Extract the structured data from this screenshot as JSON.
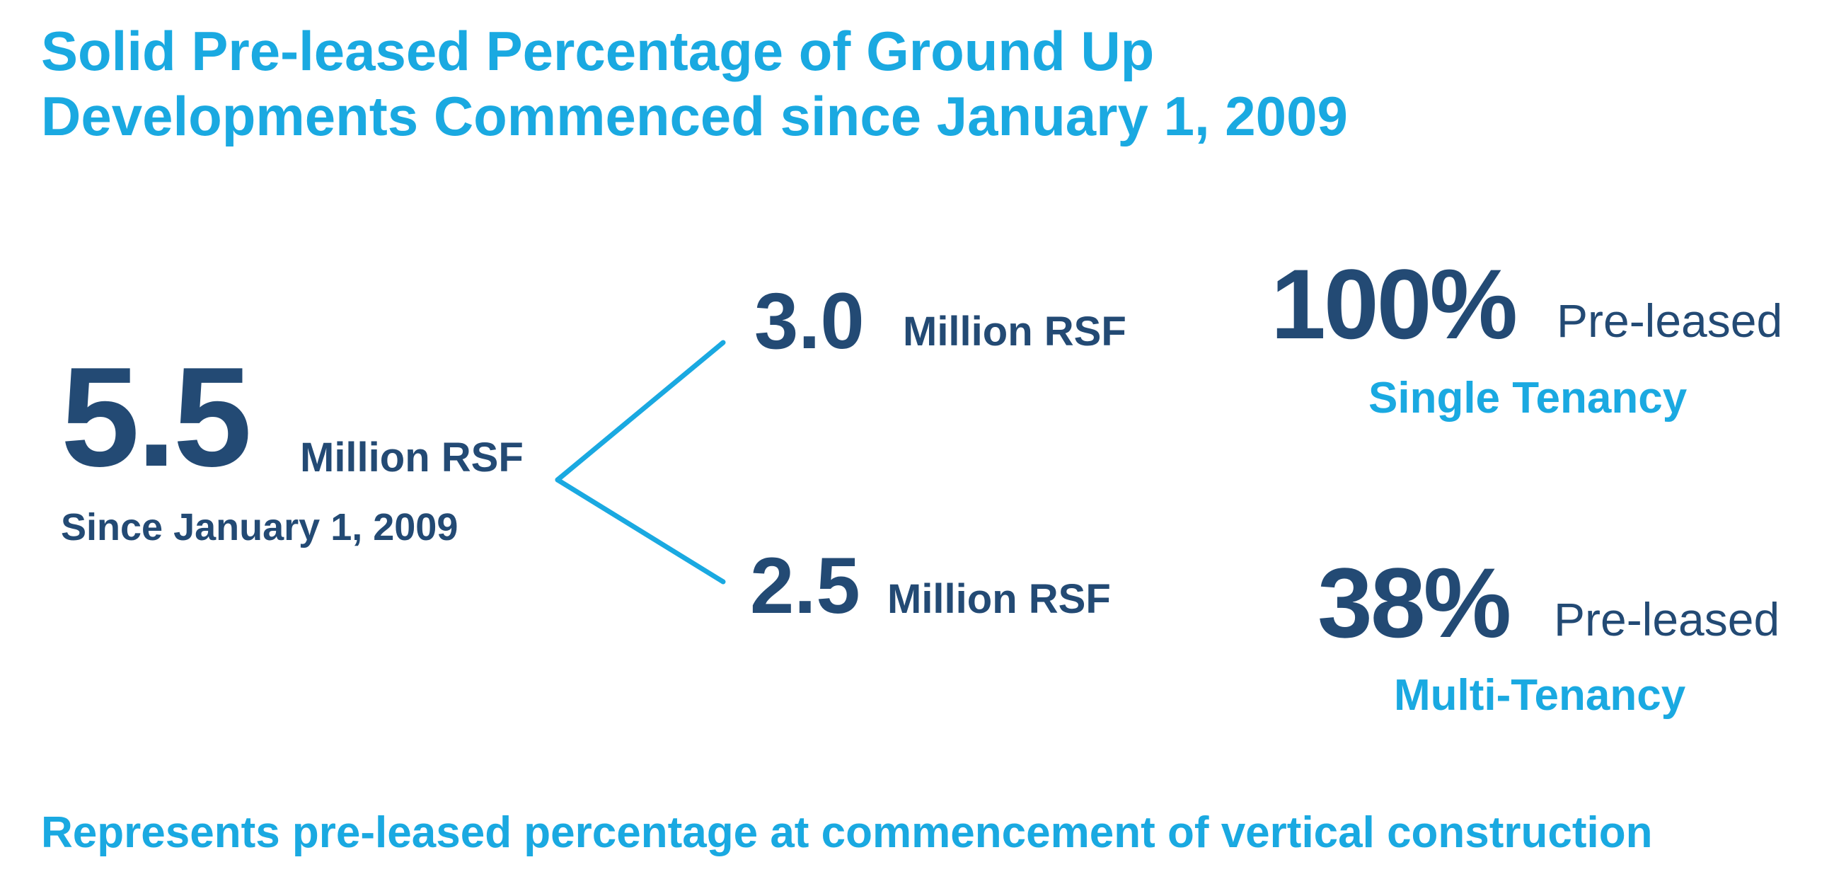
{
  "title": {
    "line1": "Solid Pre-leased Percentage of Ground Up",
    "line2": "Developments Commenced since January 1, 2009"
  },
  "total": {
    "value": "5.5",
    "unit": "Million RSF",
    "since": "Since January 1, 2009"
  },
  "branches": [
    {
      "value": "3.0",
      "unit": "Million RSF"
    },
    {
      "value": "2.5",
      "unit": "Million RSF"
    }
  ],
  "preleased": [
    {
      "percent": "100%",
      "label": "Pre-leased",
      "tenancy": "Single Tenancy"
    },
    {
      "percent": "38%",
      "label": "Pre-leased",
      "tenancy": "Multi-Tenancy"
    }
  ],
  "footnote": "Represents pre-leased percentage at commencement of vertical construction",
  "colors": {
    "accent": "#1aa9e1",
    "navy": "#234a74",
    "background": "#ffffff"
  }
}
